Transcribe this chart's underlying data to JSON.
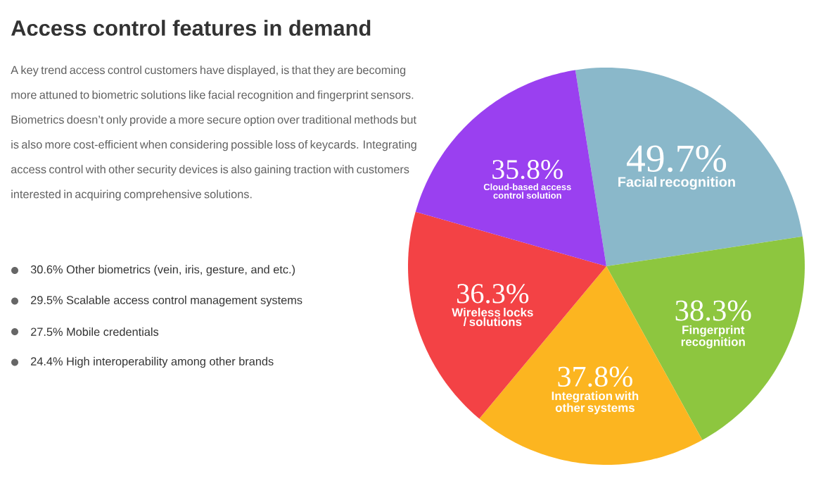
{
  "chart_data": {
    "type": "pie",
    "title": "Access control features in demand",
    "subtitle": "A key trend access control customers have displayed, is that they are becoming more attuned to biometric solutions like facial recognition and fingerprint sensors. Biometrics doesn’t only provide a more secure option over traditional methods but is also more cost-efficient when considering possible loss of keycards. Integrating access control with other security devices is also gaining traction with customers interested in  acquiring comprehensive solutions.",
    "categories": [
      "Facial recognition",
      "Fingerprint recognition",
      "Integration with other systems",
      "Wireless locks / solutions",
      "Cloud-based access control solution"
    ],
    "values": [
      49.7,
      38.3,
      37.8,
      36.3,
      35.8
    ],
    "value_labels": [
      "49.7%",
      "38.3%",
      "37.8%",
      "36.3%",
      "35.8%"
    ],
    "colors": [
      "#8ab8ca",
      "#8dc63f",
      "#fcb520",
      "#f34245",
      "#9a40f0"
    ],
    "annotations": [
      "30.6% Other biometrics (vein, iris, gesture, and etc.)",
      "29.5% Scalable access control management systems",
      "27.5% Mobile credentials",
      "24.4% High interoperability among other brands"
    ]
  }
}
